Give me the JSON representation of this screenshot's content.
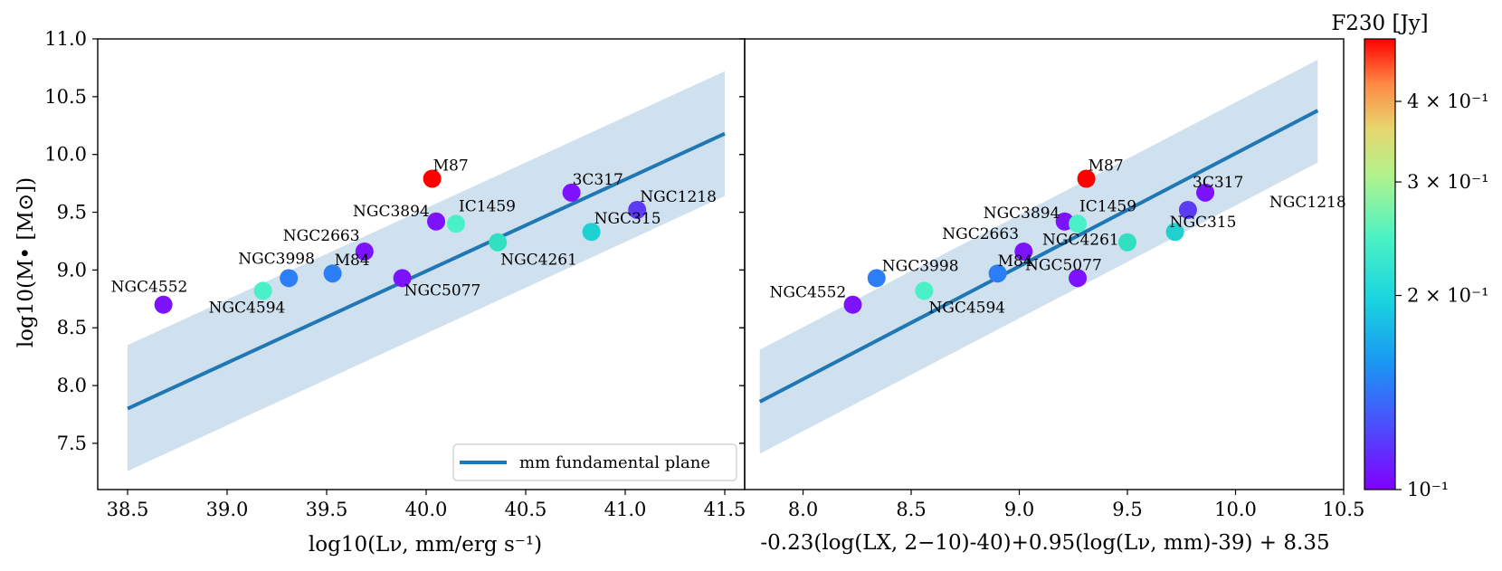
{
  "colorbar": {
    "label": "F230 [Jy]",
    "ticks": [
      "10⁻¹",
      "2 × 10⁻¹",
      "3 × 10⁻¹",
      "4 × 10⁻¹"
    ],
    "tick_values": [
      0.1,
      0.2,
      0.3,
      0.4
    ],
    "range": [
      0.1,
      0.5
    ],
    "scale": "log",
    "colormap": "rainbow"
  },
  "chart_data": [
    {
      "type": "scatter",
      "xlabel": "log10(Lν, mm/erg s⁻¹)",
      "ylabel": "log10(M• [M⊙])",
      "xlim": [
        38.35,
        41.6
      ],
      "ylim": [
        7.1,
        11.0
      ],
      "xticks": [
        "38.5",
        "39.0",
        "39.5",
        "40.0",
        "40.5",
        "41.0",
        "41.5"
      ],
      "yticks": [
        "7.5",
        "8.0",
        "8.5",
        "9.0",
        "9.5",
        "10.0",
        "10.5",
        "11.0"
      ],
      "grid": false,
      "legend": {
        "location": "lower-right",
        "entries": [
          "mm fundamental plane"
        ]
      },
      "fit_line": {
        "x": [
          38.5,
          41.5
        ],
        "y": [
          7.8,
          10.18
        ],
        "color": "#1f77b4"
      },
      "band": {
        "x": [
          38.5,
          41.5
        ],
        "upper": [
          8.35,
          10.72
        ],
        "lower": [
          7.26,
          9.64
        ],
        "color": "#cfe0ef"
      },
      "points": [
        {
          "name": "NGC4552",
          "x": 38.68,
          "y": 8.7,
          "flux": 0.1,
          "color": "#7d12ff"
        },
        {
          "name": "NGC3998",
          "x": 39.31,
          "y": 8.93,
          "flux": 0.13,
          "color": "#2c7ef7"
        },
        {
          "name": "NGC4594",
          "x": 39.18,
          "y": 8.82,
          "flux": 0.21,
          "color": "#4af0c7"
        },
        {
          "name": "M84",
          "x": 39.53,
          "y": 8.97,
          "flux": 0.13,
          "color": "#2c7ef7"
        },
        {
          "name": "NGC2663",
          "x": 39.69,
          "y": 9.16,
          "flux": 0.1,
          "color": "#7d12ff"
        },
        {
          "name": "NGC5077",
          "x": 39.88,
          "y": 8.93,
          "flux": 0.1,
          "color": "#7d12ff"
        },
        {
          "name": "NGC3894",
          "x": 40.05,
          "y": 9.42,
          "flux": 0.1,
          "color": "#7d12ff"
        },
        {
          "name": "IC1459",
          "x": 40.15,
          "y": 9.4,
          "flux": 0.21,
          "color": "#4af0c7"
        },
        {
          "name": "M87",
          "x": 40.03,
          "y": 9.79,
          "flux": 0.5,
          "color": "#ff0000"
        },
        {
          "name": "NGC4261",
          "x": 40.36,
          "y": 9.24,
          "flux": 0.19,
          "color": "#30e0c0"
        },
        {
          "name": "3C317",
          "x": 40.73,
          "y": 9.67,
          "flux": 0.1,
          "color": "#7d12ff"
        },
        {
          "name": "NGC315",
          "x": 40.83,
          "y": 9.33,
          "flux": 0.17,
          "color": "#1fd0d0"
        },
        {
          "name": "NGC1218",
          "x": 41.06,
          "y": 9.52,
          "flux": 0.11,
          "color": "#5c3bf5"
        }
      ]
    },
    {
      "type": "scatter",
      "xlabel": "-0.23(log(LX, 2−10)-40)+0.95(log(Lν, mm)-39) + 8.35",
      "ylabel": "",
      "xlim": [
        7.73,
        10.5
      ],
      "ylim": [
        7.1,
        11.0
      ],
      "xticks": [
        "8.0",
        "8.5",
        "9.0",
        "9.5",
        "10.0",
        "10.5"
      ],
      "grid": false,
      "fit_line": {
        "x": [
          7.8,
          10.38
        ],
        "y": [
          7.86,
          10.38
        ],
        "color": "#1f77b4"
      },
      "band": {
        "x": [
          7.8,
          10.38
        ],
        "upper": [
          8.31,
          10.82
        ],
        "lower": [
          7.41,
          9.93
        ],
        "color": "#cfe0ef"
      },
      "points": [
        {
          "name": "NGC4552",
          "x": 8.23,
          "y": 8.7,
          "flux": 0.1,
          "color": "#7d12ff"
        },
        {
          "name": "NGC3998",
          "x": 8.34,
          "y": 8.93,
          "flux": 0.13,
          "color": "#2c7ef7"
        },
        {
          "name": "NGC4594",
          "x": 8.56,
          "y": 8.82,
          "flux": 0.21,
          "color": "#4af0c7"
        },
        {
          "name": "M84",
          "x": 8.9,
          "y": 8.97,
          "flux": 0.13,
          "color": "#2c7ef7"
        },
        {
          "name": "NGC2663",
          "x": 9.02,
          "y": 9.16,
          "flux": 0.1,
          "color": "#7d12ff"
        },
        {
          "name": "NGC5077",
          "x": 9.27,
          "y": 8.93,
          "flux": 0.1,
          "color": "#7d12ff"
        },
        {
          "name": "NGC3894",
          "x": 9.21,
          "y": 9.42,
          "flux": 0.1,
          "color": "#7d12ff"
        },
        {
          "name": "IC1459",
          "x": 9.27,
          "y": 9.4,
          "flux": 0.21,
          "color": "#4af0c7"
        },
        {
          "name": "M87",
          "x": 9.31,
          "y": 9.79,
          "flux": 0.5,
          "color": "#ff0000"
        },
        {
          "name": "NGC4261",
          "x": 9.5,
          "y": 9.24,
          "flux": 0.19,
          "color": "#30e0c0"
        },
        {
          "name": "3C317",
          "x": 9.86,
          "y": 9.67,
          "flux": 0.1,
          "color": "#7d12ff"
        },
        {
          "name": "NGC315",
          "x": 9.72,
          "y": 9.33,
          "flux": 0.17,
          "color": "#1fd0d0"
        },
        {
          "name": "NGC1218",
          "x": 9.78,
          "y": 9.52,
          "flux": 0.11,
          "color": "#5c3bf5"
        }
      ]
    }
  ]
}
